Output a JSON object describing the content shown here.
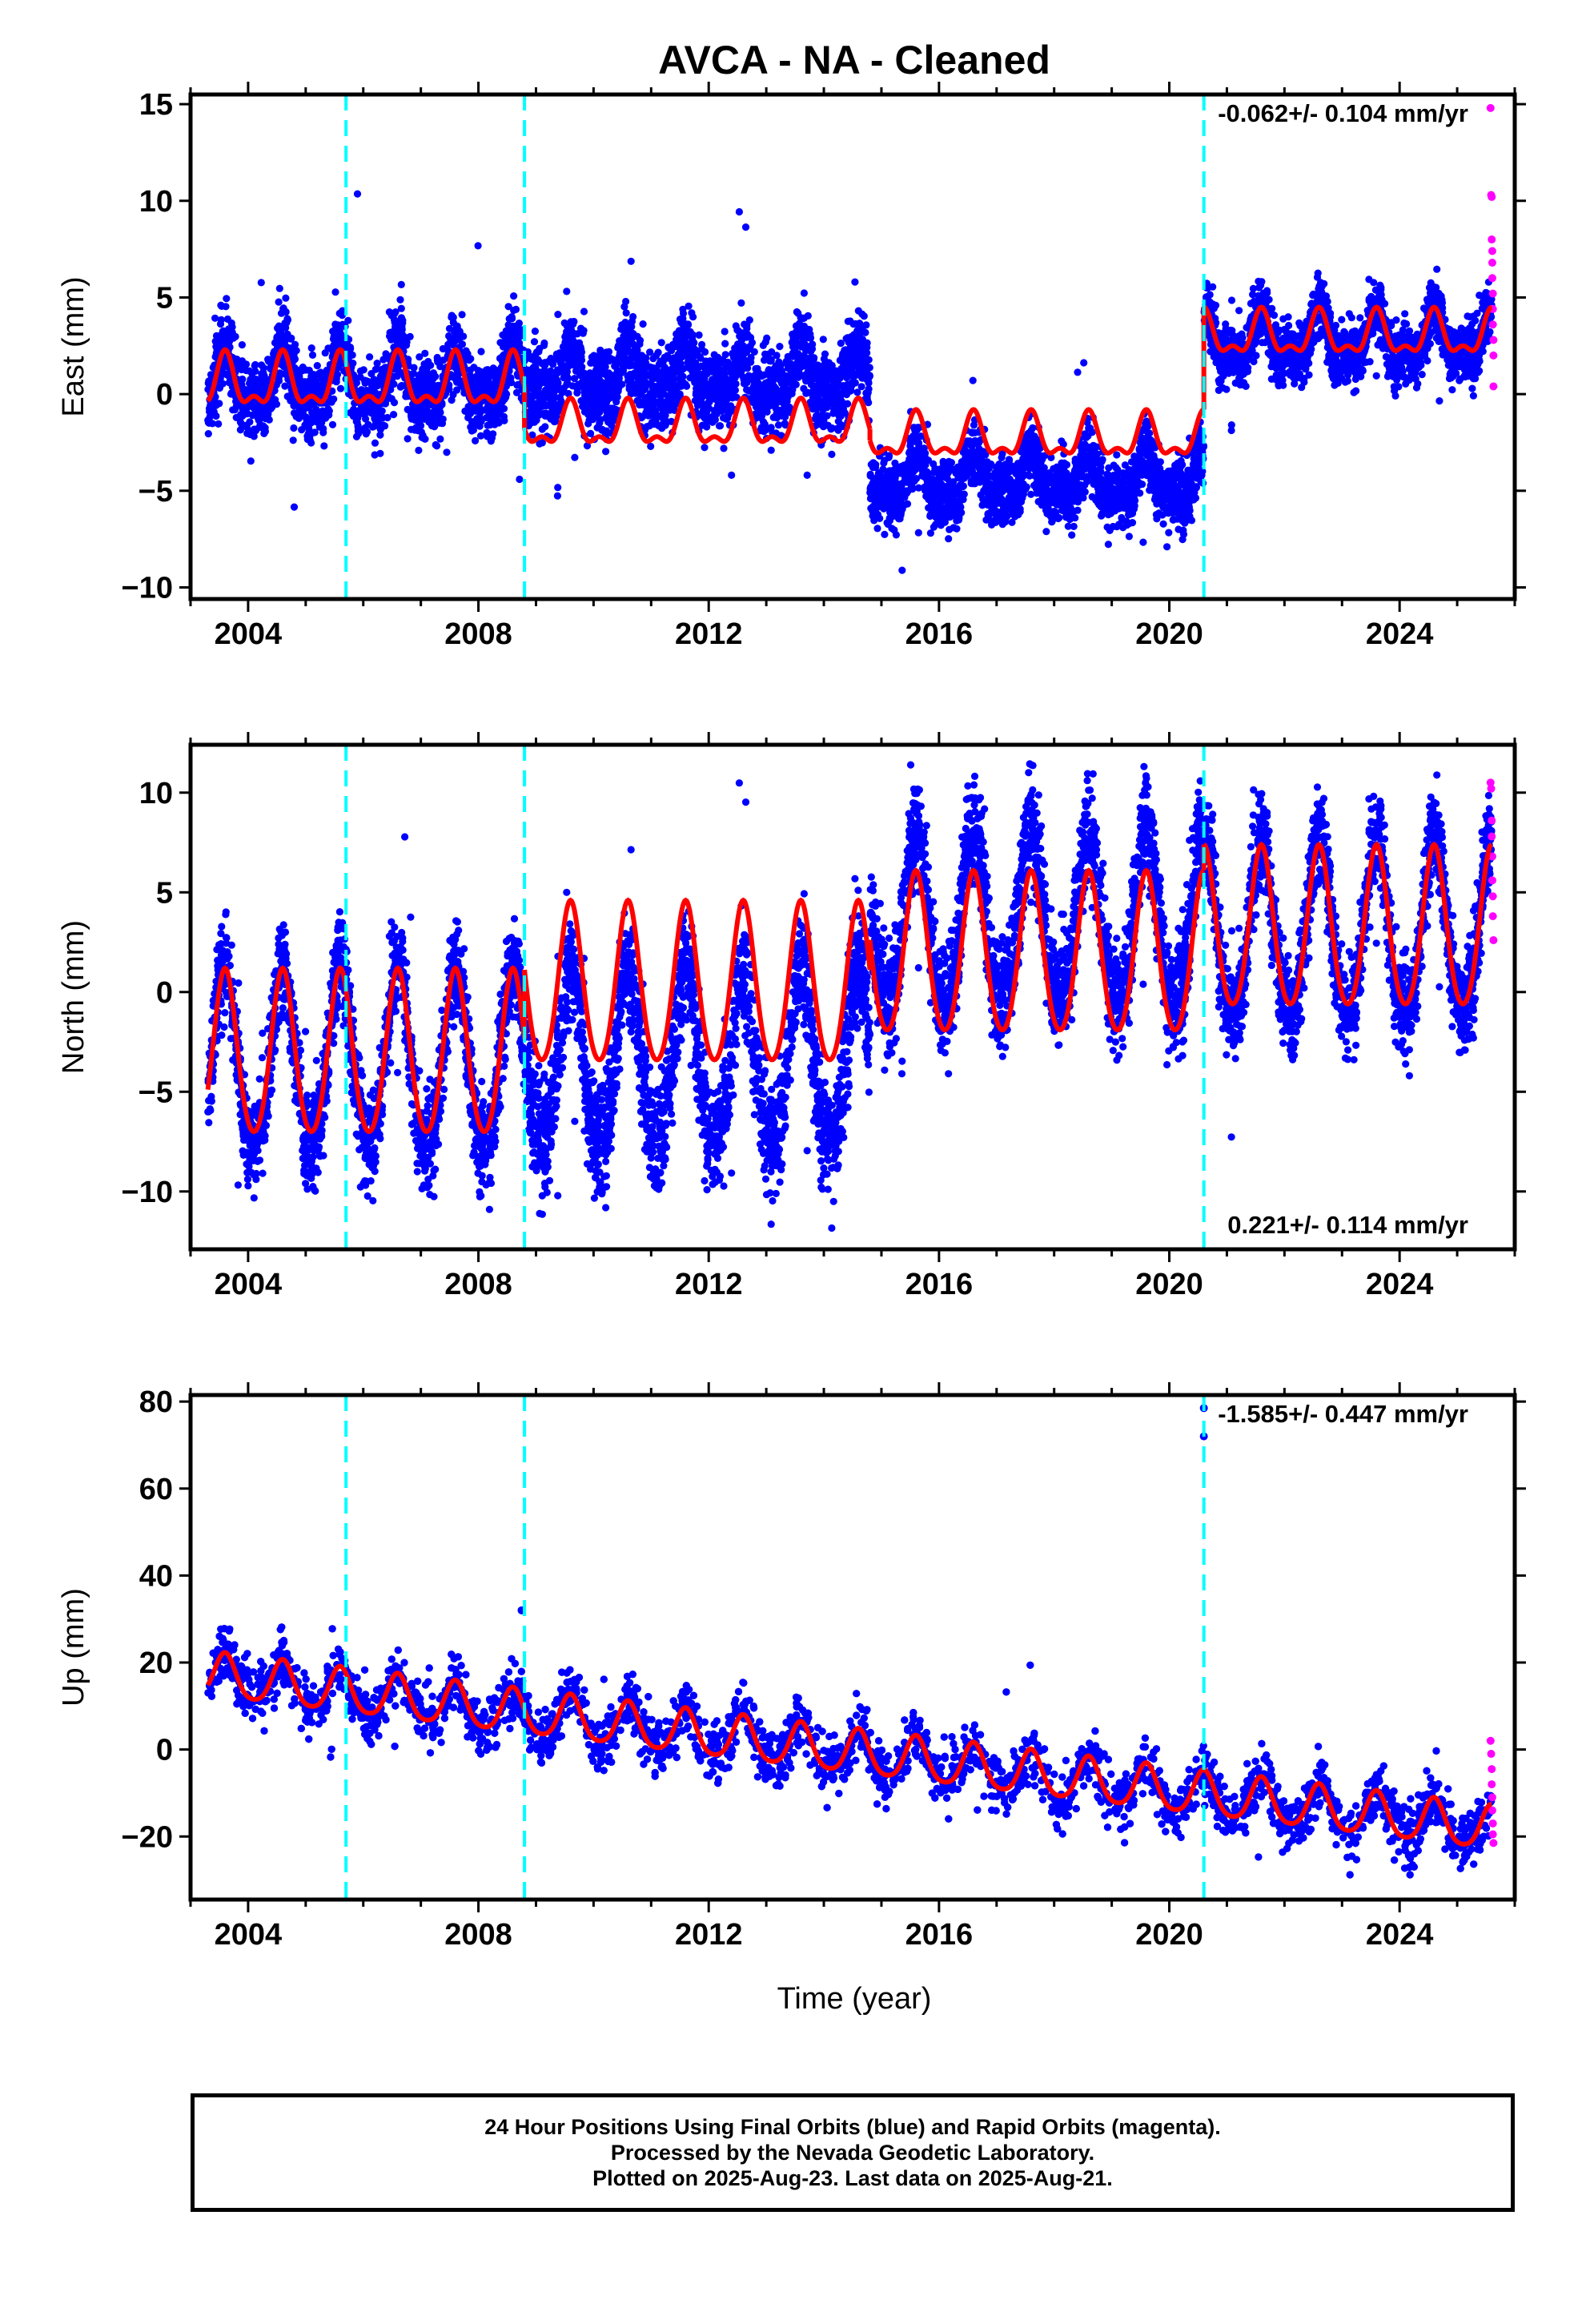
{
  "title": "AVCA  - NA - Cleaned",
  "xlabel": "Time (year)",
  "footer": {
    "line1": "24 Hour Positions Using Final Orbits (blue) and Rapid Orbits (magenta).",
    "line2": "Processed by the Nevada Geodetic Laboratory.",
    "line3": "Plotted on 2025-Aug-23. Last data on 2025-Aug-21."
  },
  "colors": {
    "final_points": "#0000ff",
    "rapid_points": "#ff00ff",
    "model_line": "#ff0000",
    "steps": "#00ffff"
  },
  "chart_data": [
    {
      "type": "scatter",
      "ylabel": "East (mm)",
      "rate": "-0.062+/- 0.104 mm/yr",
      "rate_position": "top-right",
      "xlim": [
        2003.0,
        2026.0
      ],
      "ylim": [
        -10.6,
        15.5
      ],
      "x_ticks": [
        2004,
        2008,
        2012,
        2016,
        2020,
        2024
      ],
      "y_ticks": [
        -10,
        -5,
        0,
        5,
        10,
        15
      ],
      "step_epochs": [
        2005.7,
        2008.8,
        2020.6
      ],
      "model_segments": [
        {
          "t0": 2003.3,
          "t1": 2008.8,
          "offset": 0.5,
          "annual_amp": 1.2,
          "semiannual_amp": 0.6
        },
        {
          "t0": 2008.8,
          "t1": 2014.8,
          "offset": -1.7,
          "annual_amp": 1.0,
          "semiannual_amp": 0.5
        },
        {
          "t0": 2014.8,
          "t1": 2020.6,
          "offset": -2.3,
          "annual_amp": 1.0,
          "semiannual_amp": 0.5
        },
        {
          "t0": 2020.6,
          "t1": 2025.6,
          "offset": 3.0,
          "annual_amp": 1.0,
          "semiannual_amp": 0.5
        }
      ],
      "data_ranges": [
        {
          "t0": 2003.3,
          "t1": 2008.8,
          "center": 0.6,
          "spread": 1.6
        },
        {
          "t0": 2008.8,
          "t1": 2014.8,
          "center": 0.8,
          "spread": 1.8
        },
        {
          "t0": 2014.8,
          "t1": 2020.6,
          "center": -4.5,
          "spread": 1.4
        },
        {
          "t0": 2020.6,
          "t1": 2025.6,
          "center": 2.8,
          "spread": 1.3
        }
      ],
      "rapid_points": [
        [
          2025.58,
          14.8
        ],
        [
          2025.59,
          10.3
        ],
        [
          2025.6,
          10.2
        ],
        [
          2025.6,
          8.0
        ],
        [
          2025.61,
          7.4
        ],
        [
          2025.61,
          6.8
        ],
        [
          2025.61,
          6.0
        ],
        [
          2025.62,
          5.2
        ],
        [
          2025.62,
          4.4
        ],
        [
          2025.62,
          3.6
        ],
        [
          2025.63,
          2.8
        ],
        [
          2025.63,
          2.0
        ],
        [
          2025.63,
          0.4
        ]
      ]
    },
    {
      "type": "scatter",
      "ylabel": "North (mm)",
      "rate": "0.221+/- 0.114 mm/yr",
      "rate_position": "bottom-right",
      "xlim": [
        2003.0,
        2026.0
      ],
      "ylim": [
        -12.9,
        12.4
      ],
      "x_ticks": [
        2004,
        2008,
        2012,
        2016,
        2020,
        2024
      ],
      "y_ticks": [
        -10,
        -5,
        0,
        5,
        10
      ],
      "step_epochs": [
        2005.7,
        2008.8,
        2020.6
      ],
      "model_segments": [
        {
          "t0": 2003.3,
          "t1": 2008.8,
          "offset": -3.3,
          "annual_amp": 4.1,
          "semiannual_amp": 0.4
        },
        {
          "t0": 2008.8,
          "t1": 2014.8,
          "offset": 0.2,
          "annual_amp": 4.0,
          "semiannual_amp": 0.4
        },
        {
          "t0": 2014.8,
          "t1": 2020.6,
          "offset": 1.7,
          "annual_amp": 4.0,
          "semiannual_amp": 0.4
        },
        {
          "t0": 2020.6,
          "t1": 2025.6,
          "offset": 3.0,
          "annual_amp": 4.0,
          "semiannual_amp": 0.4
        }
      ],
      "data_ranges": [
        {
          "t0": 2003.3,
          "t1": 2008.8,
          "center": -3.6,
          "spread": 2.0
        },
        {
          "t0": 2008.8,
          "t1": 2014.8,
          "center": -3.5,
          "spread": 2.4
        },
        {
          "t0": 2014.8,
          "t1": 2020.6,
          "center": 3.5,
          "spread": 2.3
        },
        {
          "t0": 2020.6,
          "t1": 2025.6,
          "center": 3.0,
          "spread": 2.0
        }
      ],
      "rapid_points": [
        [
          2025.58,
          10.5
        ],
        [
          2025.59,
          10.2
        ],
        [
          2025.6,
          8.6
        ],
        [
          2025.6,
          7.8
        ],
        [
          2025.61,
          6.8
        ],
        [
          2025.61,
          5.6
        ],
        [
          2025.62,
          4.8
        ],
        [
          2025.62,
          3.8
        ],
        [
          2025.63,
          2.6
        ]
      ]
    },
    {
      "type": "scatter",
      "ylabel": "Up (mm)",
      "rate": "-1.585+/- 0.447 mm/yr",
      "rate_position": "top-right",
      "xlim": [
        2003.0,
        2026.0
      ],
      "ylim": [
        -34.5,
        81.5
      ],
      "x_ticks": [
        2004,
        2008,
        2012,
        2016,
        2020,
        2024
      ],
      "y_ticks": [
        -20,
        0,
        20,
        40,
        60,
        80
      ],
      "step_epochs": [
        2005.7,
        2008.8,
        2020.6
      ],
      "model_segments": [
        {
          "t0": 2003.3,
          "t1": 2025.6,
          "offset": 17.0,
          "trend": -1.585,
          "annual_amp": 5.0,
          "semiannual_amp": 0.8
        }
      ],
      "data_ranges": [
        {
          "t0": 2003.3,
          "t1": 2025.6,
          "center": 17.0,
          "trend": -1.585,
          "spread": 5.5
        }
      ],
      "outliers": [
        [
          2020.6,
          78.5
        ],
        [
          2020.6,
          72.0
        ],
        [
          2008.75,
          32.0
        ]
      ],
      "rapid_points": [
        [
          2025.58,
          2.0
        ],
        [
          2025.59,
          -1.0
        ],
        [
          2025.6,
          -4.5
        ],
        [
          2025.6,
          -8.0
        ],
        [
          2025.61,
          -11.0
        ],
        [
          2025.61,
          -14.0
        ],
        [
          2025.62,
          -17.0
        ],
        [
          2025.62,
          -19.5
        ],
        [
          2025.63,
          -21.5
        ]
      ]
    }
  ]
}
